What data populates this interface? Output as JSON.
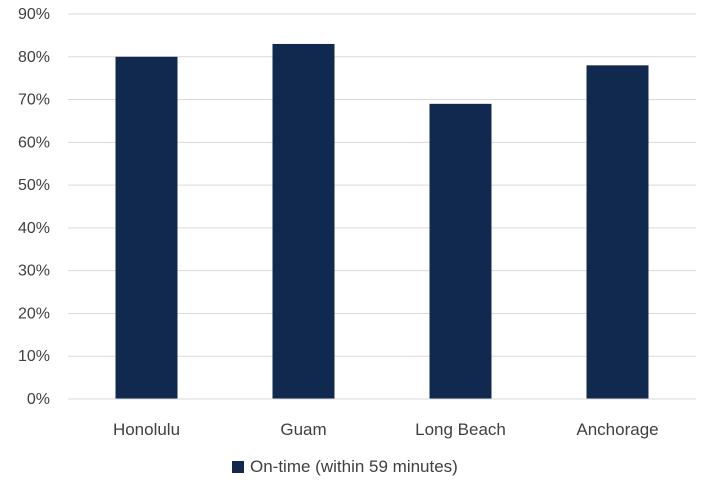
{
  "chart_data": {
    "type": "bar",
    "categories": [
      "Honolulu",
      "Guam",
      "Long Beach",
      "Anchorage"
    ],
    "series": [
      {
        "name": "On-time (within 59 minutes)",
        "values": [
          80,
          83,
          69,
          78
        ],
        "color": "#12294f"
      }
    ],
    "ylim": [
      0,
      90
    ],
    "y_ticks": [
      0,
      10,
      20,
      30,
      40,
      50,
      60,
      70,
      80,
      90
    ],
    "y_tick_labels": [
      "0%",
      "10%",
      "20%",
      "30%",
      "40%",
      "50%",
      "60%",
      "70%",
      "80%",
      "90%"
    ],
    "grid": true,
    "grid_color": "#d9d9d9",
    "legend_position": "bottom"
  }
}
